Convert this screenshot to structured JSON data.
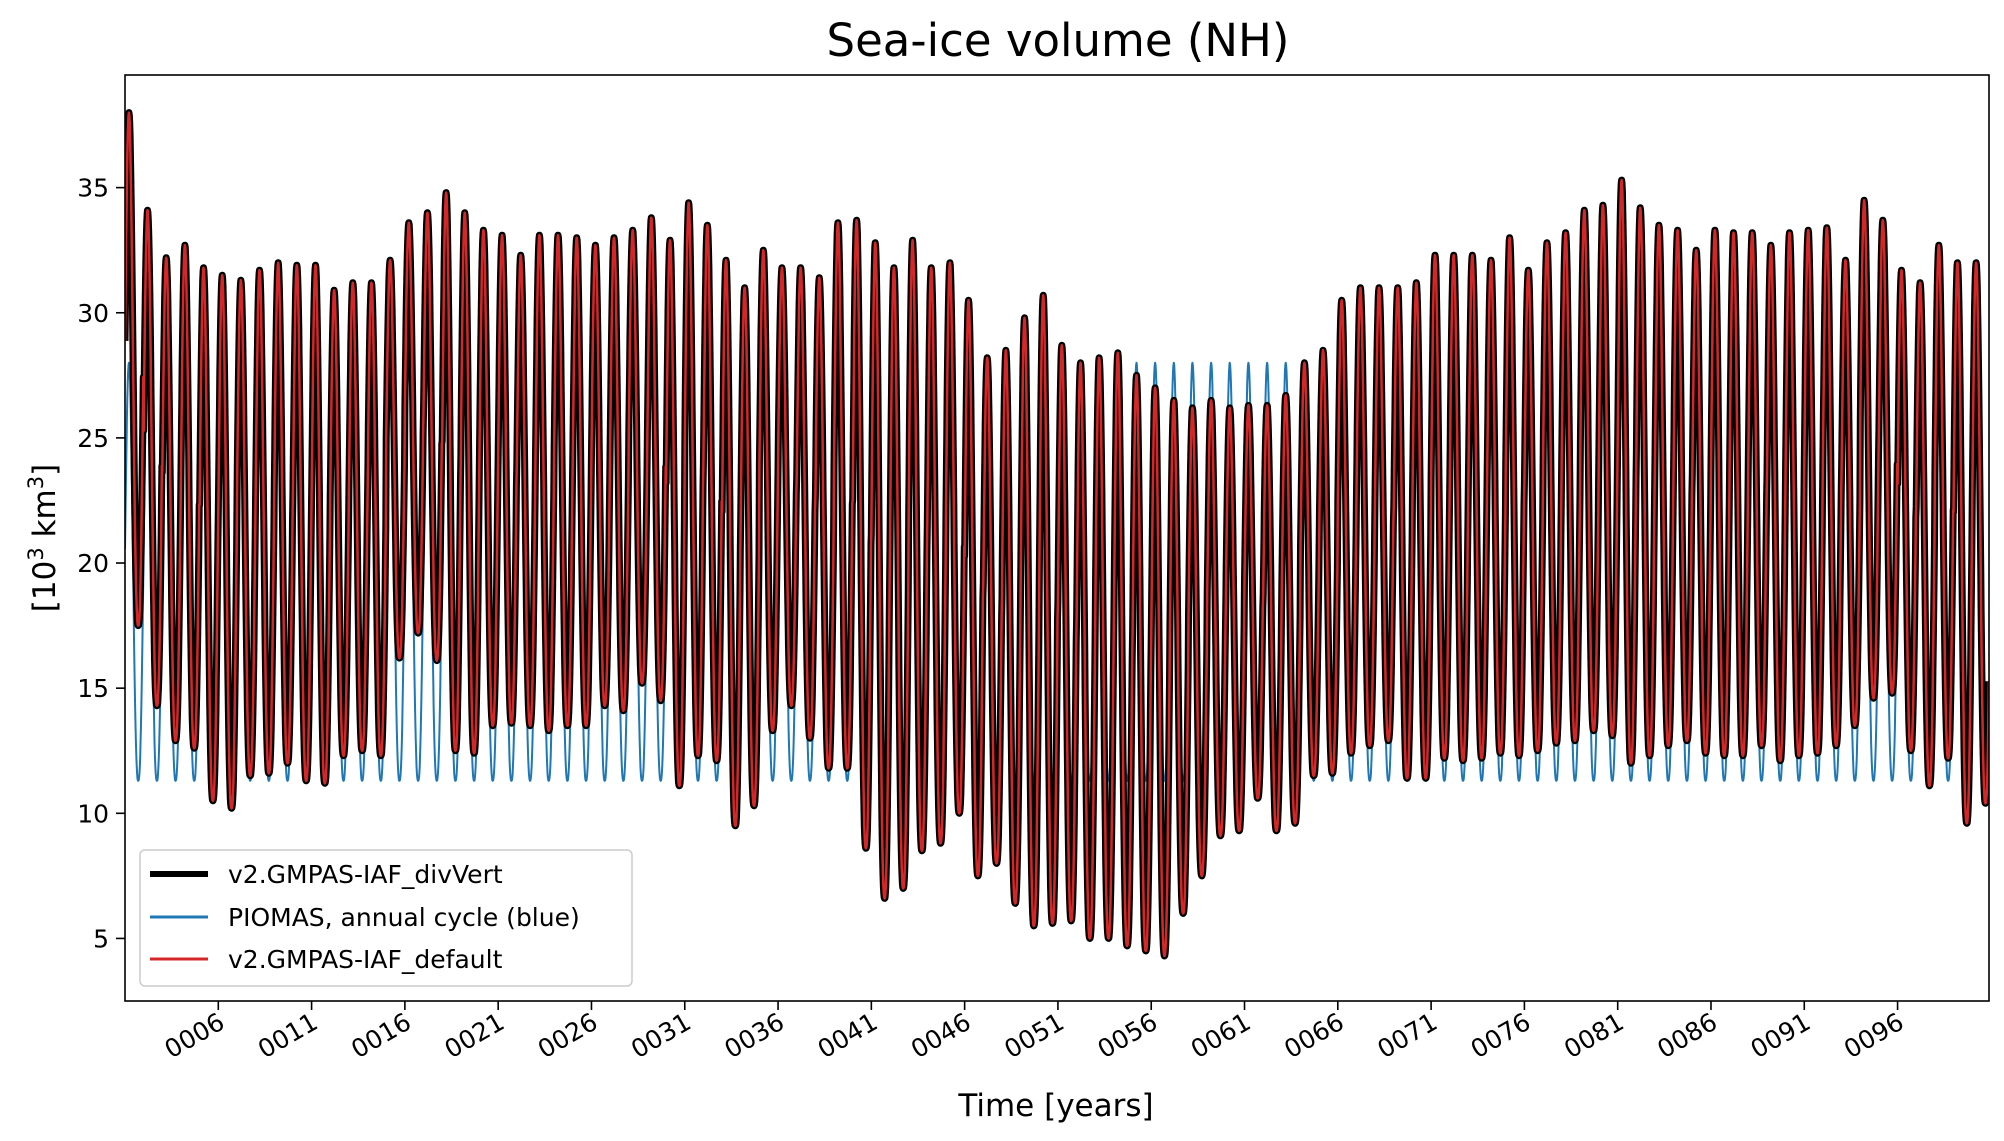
{
  "chart_data": {
    "type": "line",
    "title": "Sea-ice volume (NH)",
    "xlabel": "Time [years]",
    "ylabel_base": "[10",
    "ylabel_sup": "3",
    "ylabel_mid": " km",
    "ylabel_sup2": "3",
    "ylabel_end": "]",
    "xlim": [
      1,
      100.9
    ],
    "ylim": [
      2.5,
      39.5
    ],
    "yticks": [
      5,
      10,
      15,
      20,
      25,
      30,
      35
    ],
    "xticks": [
      6,
      11,
      16,
      21,
      26,
      31,
      36,
      41,
      46,
      51,
      56,
      61,
      66,
      71,
      76,
      81,
      86,
      91,
      96
    ],
    "xtick_labels": [
      "0006",
      "0011",
      "0016",
      "0021",
      "0026",
      "0031",
      "0036",
      "0041",
      "0046",
      "0051",
      "0056",
      "0061",
      "0066",
      "0071",
      "0076",
      "0081",
      "0086",
      "0091",
      "0096"
    ],
    "legend_position": "lower-left",
    "grid": false,
    "series": [
      {
        "name": "v2.GMPAS-IAF_divVert",
        "color": "#000000",
        "line_width": 3,
        "annual_max": [
          38.0,
          34.1,
          32.2,
          32.7,
          31.8,
          31.5,
          31.3,
          31.7,
          32.0,
          31.9,
          31.9,
          30.9,
          31.2,
          31.2,
          32.1,
          33.6,
          34.0,
          34.8,
          34.0,
          33.3,
          33.1,
          32.3,
          33.1,
          33.1,
          33.0,
          32.7,
          33.0,
          33.3,
          33.8,
          32.9,
          34.4,
          33.5,
          32.1,
          31.0,
          32.5,
          31.8,
          31.8,
          31.4,
          33.6,
          33.7,
          32.8,
          31.8,
          32.9,
          31.8,
          32.0,
          30.5,
          28.2,
          28.5,
          29.8,
          30.7,
          28.7,
          28.0,
          28.2,
          28.4,
          27.5,
          27.0,
          26.5,
          26.2,
          26.5,
          26.2,
          26.3,
          26.3,
          26.7,
          28.0,
          28.5,
          30.5,
          31.0,
          31.0,
          31.0,
          31.2,
          32.3,
          32.3,
          32.3,
          32.1,
          33.0,
          31.7,
          32.8,
          33.2,
          34.1,
          34.3,
          35.3,
          34.2,
          33.5,
          33.3,
          32.5,
          33.3,
          33.2,
          33.2,
          32.7,
          33.2,
          33.3,
          33.4,
          32.1,
          34.5,
          33.7,
          31.7,
          31.2,
          32.7,
          32.0,
          32.0
        ],
        "annual_min": [
          17.5,
          14.3,
          12.9,
          12.6,
          10.5,
          10.2,
          11.5,
          11.6,
          12.0,
          11.3,
          11.2,
          12.3,
          12.5,
          12.3,
          16.2,
          17.2,
          16.1,
          12.5,
          12.4,
          13.5,
          13.6,
          13.5,
          13.3,
          13.5,
          13.5,
          14.3,
          14.1,
          15.2,
          14.5,
          11.1,
          12.3,
          12.1,
          9.5,
          10.3,
          13.3,
          14.3,
          13.0,
          11.8,
          11.8,
          8.6,
          6.6,
          7.0,
          8.5,
          8.8,
          10.0,
          7.5,
          8.0,
          6.4,
          5.5,
          5.6,
          5.7,
          5.0,
          5.0,
          4.7,
          4.5,
          4.3,
          6.0,
          7.5,
          9.1,
          9.3,
          10.6,
          9.3,
          9.6,
          11.5,
          11.6,
          12.4,
          12.7,
          12.9,
          11.4,
          11.4,
          12.2,
          12.1,
          12.2,
          12.4,
          12.3,
          12.5,
          12.8,
          12.9,
          13.3,
          13.1,
          12.0,
          12.3,
          12.7,
          12.9,
          12.4,
          12.3,
          12.3,
          12.7,
          12.1,
          12.3,
          12.4,
          12.7,
          13.5,
          14.6,
          14.8,
          12.5,
          11.1,
          12.2,
          9.6,
          10.4
        ]
      },
      {
        "name": "PIOMAS, annual cycle (blue)",
        "color": "#1f77b4",
        "line_width": 2,
        "max": 28.0,
        "min": 11.3
      },
      {
        "name": "v2.GMPAS-IAF_default",
        "color": "#d62728",
        "line_width": 2
      }
    ]
  }
}
